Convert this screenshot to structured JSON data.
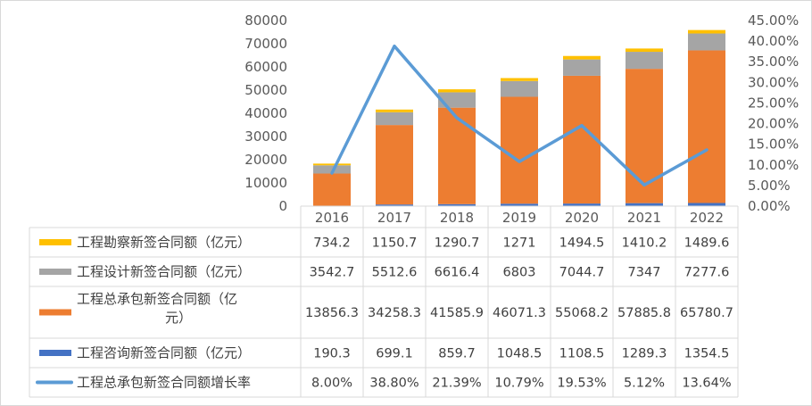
{
  "chart_data": {
    "type": "bar",
    "stacked": true,
    "categories": [
      "2016",
      "2017",
      "2018",
      "2019",
      "2020",
      "2021",
      "2022"
    ],
    "series": [
      {
        "name": "工程咨询新签合同额（亿元）",
        "kind": "bar",
        "color": "#4472c4",
        "values": [
          190.3,
          699.1,
          859.7,
          1048.5,
          1108.5,
          1289.3,
          1354.5
        ]
      },
      {
        "name": "工程总承包新签合同额（亿元）",
        "kind": "bar",
        "color": "#ed7d31",
        "values": [
          13856.3,
          34258.3,
          41585.9,
          46071.3,
          55068.2,
          57885.8,
          65780.7
        ]
      },
      {
        "name": "工程设计新签合同额（亿元）",
        "kind": "bar",
        "color": "#a5a5a5",
        "values": [
          3542.7,
          5512.6,
          6616.4,
          6803,
          7044.7,
          7347,
          7277.6
        ]
      },
      {
        "name": "工程勘察新签合同额（亿元）",
        "kind": "bar",
        "color": "#ffc000",
        "values": [
          734.2,
          1150.7,
          1290.7,
          1271,
          1494.5,
          1410.2,
          1489.6
        ]
      },
      {
        "name": "工程总承包新签合同额增长率",
        "kind": "line",
        "axis": "right",
        "color": "#5b9bd5",
        "values": [
          8.0,
          38.8,
          21.39,
          10.79,
          19.53,
          5.12,
          13.64
        ]
      }
    ],
    "y_left": {
      "min": 0,
      "max": 80000,
      "step": 10000
    },
    "y_right": {
      "min": 0,
      "max": 45,
      "step": 5,
      "unit": "%"
    },
    "table": {
      "order": [
        3,
        2,
        1,
        0,
        4
      ],
      "rows": [
        [
          "734.2",
          "1150.7",
          "1290.7",
          "1271",
          "1494.5",
          "1410.2",
          "1489.6"
        ],
        [
          "3542.7",
          "5512.6",
          "6616.4",
          "6803",
          "7044.7",
          "7347",
          "7277.6"
        ],
        [
          "13856.3",
          "34258.3",
          "41585.9",
          "46071.3",
          "55068.2",
          "57885.8",
          "65780.7"
        ],
        [
          "190.3",
          "699.1",
          "859.7",
          "1048.5",
          "1108.5",
          "1289.3",
          "1354.5"
        ],
        [
          "8.00%",
          "38.80%",
          "21.39%",
          "10.79%",
          "19.53%",
          "5.12%",
          "13.64%"
        ]
      ],
      "legend_lines": [
        [
          "工程勘察新签合同额（亿元）"
        ],
        [
          "工程设计新签合同额（亿元）"
        ],
        [
          "工程总承包新签合同额（亿",
          "元）"
        ],
        [
          "工程咨询新签合同额（亿元）"
        ],
        [
          "工程总承包新签合同额增长率"
        ]
      ]
    }
  }
}
